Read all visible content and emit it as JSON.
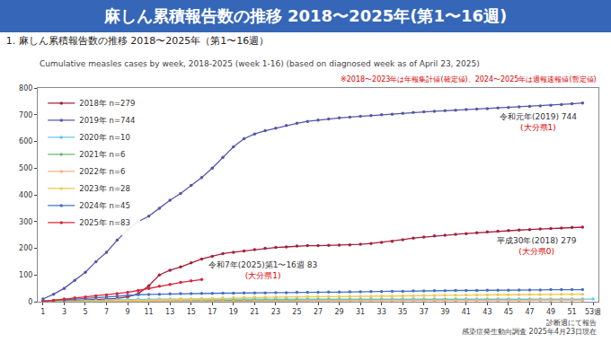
{
  "header": {
    "title": "麻しん累積報告数の推移 2018〜2025年(第1〜16週)"
  },
  "chart_data": {
    "type": "line",
    "title": "1. 麻しん累積報告数の推移 2018〜2025年（第1〜16週）",
    "subtitle": "Cumulative measles cases by week, 2018-2025 (week 1-16) (based on diagnosed week as of April 23, 2025)",
    "note": "※2018〜2023年は年報集計値(確定値)、2024〜2025年は週報速報値(暫定値)",
    "source": [
      "診断週にて報告",
      "感染症発生動向調査 2025年4月23日現在"
    ],
    "x": [
      1,
      2,
      3,
      4,
      5,
      6,
      7,
      8,
      9,
      10,
      11,
      12,
      13,
      14,
      15,
      16,
      17,
      18,
      19,
      20,
      21,
      22,
      23,
      24,
      25,
      26,
      27,
      28,
      29,
      30,
      31,
      32,
      33,
      34,
      35,
      36,
      37,
      38,
      39,
      40,
      41,
      42,
      43,
      44,
      45,
      46,
      47,
      48,
      49,
      50,
      51,
      52,
      53
    ],
    "xlim": [
      0.5,
      53.5
    ],
    "xticks": [
      1,
      3,
      5,
      7,
      9,
      11,
      13,
      15,
      17,
      19,
      21,
      23,
      25,
      27,
      29,
      31,
      33,
      35,
      37,
      39,
      41,
      43,
      45,
      47,
      49,
      51,
      {
        "value": 53,
        "label": "53週"
      }
    ],
    "ylim": [
      0,
      800
    ],
    "yticks": [
      0,
      100,
      200,
      300,
      400,
      500,
      600,
      700,
      800
    ],
    "grid": false,
    "legend": "upper left",
    "marker": "circle",
    "line_style": "solid",
    "series": [
      {
        "name": "2018年 n=279",
        "color": "#a51f3c",
        "annotation": "平成30年(2018) 279",
        "annotation_note": "(大分県0)",
        "values": [
          0,
          1,
          2,
          4,
          6,
          8,
          10,
          12,
          18,
          30,
          60,
          100,
          118,
          130,
          145,
          160,
          170,
          180,
          185,
          190,
          195,
          200,
          203,
          205,
          208,
          210,
          210,
          211,
          212,
          213,
          215,
          218,
          222,
          226,
          232,
          238,
          242,
          246,
          249,
          252,
          255,
          258,
          261,
          264,
          266,
          268,
          270,
          272,
          274,
          276,
          278,
          279,
          null
        ]
      },
      {
        "name": "2019年 n=744",
        "color": "#5656a8",
        "annotation": "令和元年(2019) 744",
        "annotation_note": "(大分県1)",
        "values": [
          10,
          28,
          50,
          80,
          110,
          150,
          185,
          230,
          270,
          300,
          320,
          350,
          380,
          405,
          435,
          465,
          500,
          540,
          580,
          610,
          628,
          640,
          650,
          660,
          668,
          675,
          680,
          684,
          688,
          691,
          694,
          697,
          700,
          702,
          705,
          708,
          711,
          713,
          715,
          717,
          719,
          721,
          723,
          725,
          727,
          729,
          731,
          733,
          735,
          738,
          741,
          744,
          null
        ]
      },
      {
        "name": "2020年 n=10",
        "color": "#66c6ee",
        "values": [
          1,
          2,
          3,
          4,
          5,
          6,
          7,
          8,
          9,
          10,
          10,
          10,
          10,
          10,
          10,
          10,
          10,
          10,
          10,
          10,
          10,
          10,
          10,
          10,
          10,
          10,
          10,
          10,
          10,
          10,
          10,
          10,
          10,
          10,
          10,
          10,
          10,
          10,
          10,
          10,
          10,
          10,
          10,
          10,
          10,
          10,
          10,
          10,
          10,
          10,
          10,
          10,
          10
        ]
      },
      {
        "name": "2021年 n=6",
        "color": "#6bb86b",
        "values": [
          0,
          0,
          1,
          1,
          1,
          2,
          2,
          2,
          3,
          3,
          3,
          4,
          4,
          4,
          4,
          5,
          5,
          5,
          5,
          5,
          6,
          6,
          6,
          6,
          6,
          6,
          6,
          6,
          6,
          6,
          6,
          6,
          6,
          6,
          6,
          6,
          6,
          6,
          6,
          6,
          6,
          6,
          6,
          6,
          6,
          6,
          6,
          6,
          6,
          6,
          6,
          6,
          null
        ]
      },
      {
        "name": "2022年 n=6",
        "color": "#f4b183",
        "values": [
          0,
          0,
          0,
          0,
          0,
          1,
          1,
          1,
          1,
          1,
          1,
          1,
          1,
          1,
          1,
          1,
          1,
          2,
          2,
          2,
          2,
          2,
          2,
          2,
          2,
          3,
          3,
          3,
          3,
          3,
          3,
          3,
          3,
          4,
          4,
          4,
          4,
          4,
          4,
          4,
          5,
          5,
          5,
          5,
          5,
          5,
          5,
          6,
          6,
          6,
          6,
          6,
          null
        ]
      },
      {
        "name": "2023年 n=28",
        "color": "#f2c84b",
        "values": [
          0,
          0,
          0,
          0,
          1,
          1,
          2,
          3,
          4,
          5,
          6,
          7,
          8,
          9,
          10,
          12,
          13,
          14,
          15,
          16,
          17,
          17,
          18,
          18,
          18,
          19,
          19,
          19,
          19,
          20,
          20,
          20,
          21,
          21,
          22,
          22,
          23,
          23,
          24,
          24,
          25,
          25,
          25,
          26,
          26,
          26,
          27,
          27,
          27,
          28,
          28,
          28,
          null
        ]
      },
      {
        "name": "2024年 n=45",
        "color": "#4472c4",
        "values": [
          2,
          4,
          6,
          9,
          12,
          15,
          18,
          21,
          24,
          26,
          27,
          28,
          29,
          30,
          30,
          31,
          31,
          32,
          32,
          33,
          33,
          33,
          34,
          34,
          35,
          35,
          35,
          36,
          36,
          37,
          37,
          38,
          38,
          39,
          39,
          40,
          40,
          41,
          41,
          42,
          42,
          42,
          43,
          43,
          43,
          44,
          44,
          44,
          45,
          45,
          45,
          45,
          null
        ]
      },
      {
        "name": "2025年 n=83",
        "color": "#d9263a",
        "annotation": "令和7年(2025)第1〜16週 83",
        "annotation_note": "(大分県1)",
        "values": [
          2,
          5,
          10,
          14,
          18,
          22,
          25,
          30,
          35,
          42,
          50,
          58,
          65,
          72,
          78,
          83,
          null,
          null,
          null,
          null,
          null,
          null,
          null,
          null,
          null,
          null,
          null,
          null,
          null,
          null,
          null,
          null,
          null,
          null,
          null,
          null,
          null,
          null,
          null,
          null,
          null,
          null,
          null,
          null,
          null,
          null,
          null,
          null,
          null,
          null,
          null,
          null,
          null
        ]
      }
    ]
  }
}
